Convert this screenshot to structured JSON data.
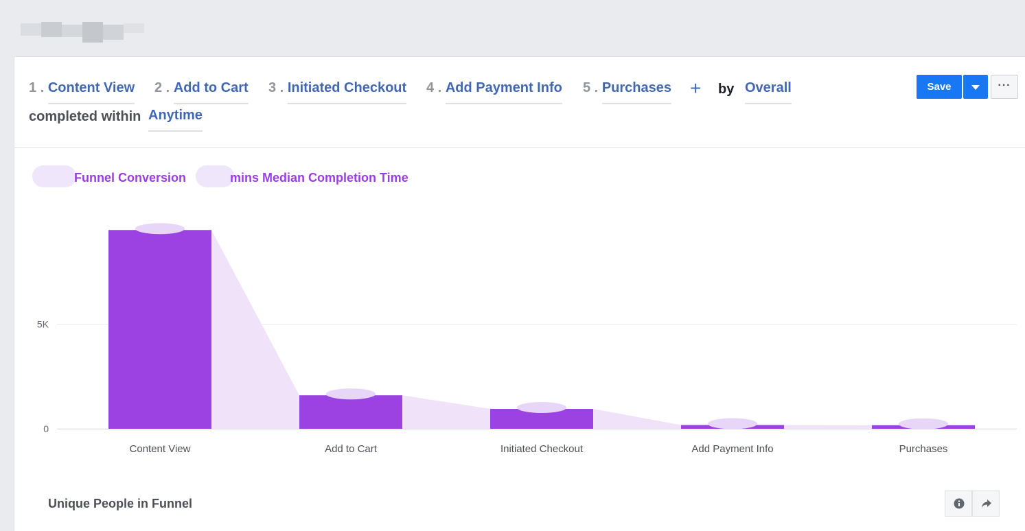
{
  "query": {
    "steps": [
      {
        "num": "1 .",
        "label": "Content View"
      },
      {
        "num": "2 .",
        "label": "Add to Cart"
      },
      {
        "num": "3 .",
        "label": "Initiated Checkout"
      },
      {
        "num": "4 .",
        "label": "Add Payment Info"
      },
      {
        "num": "5 .",
        "label": "Purchases"
      }
    ],
    "by_label": "by",
    "breakdown": "Overall",
    "within_label": "completed within",
    "within_value": "Anytime"
  },
  "toolbar": {
    "save_label": "Save",
    "more_label": "···"
  },
  "metrics": {
    "conversion_label": "Funnel Conversion",
    "completion_label": "mins Median Completion Time"
  },
  "chart_data": {
    "type": "bar",
    "categories": [
      "Content View",
      "Add to Cart",
      "Initiated Checkout",
      "Add Payment Info",
      "Purchases"
    ],
    "values": [
      9500,
      1600,
      950,
      180,
      170
    ],
    "ylim": [
      0,
      10000
    ],
    "yticks": [
      {
        "value": 0,
        "label": "0"
      },
      {
        "value": 5000,
        "label": "5K"
      }
    ],
    "colors": {
      "bar": "#9b42e2",
      "funnel": "#efe2f9",
      "grid": "#e9ebee"
    },
    "grid": true
  },
  "section": {
    "title": "Unique People in Funnel"
  },
  "icons": {
    "info": "info-icon",
    "share": "share-icon"
  }
}
